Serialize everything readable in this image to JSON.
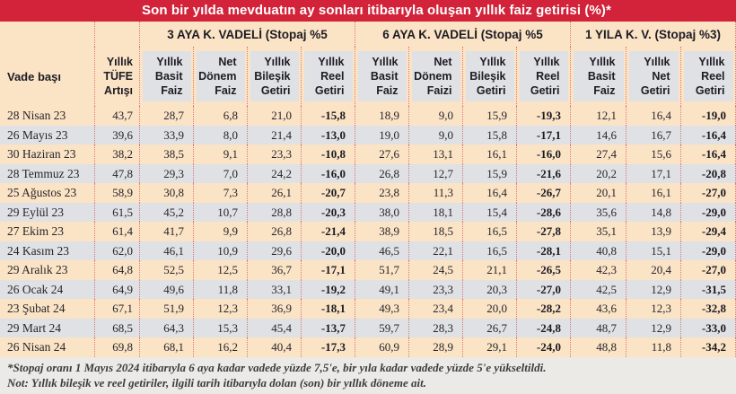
{
  "title": "Son bir yılda mevduatın ay sonları itibarıyla oluşan yıllık faiz getirisi (%)*",
  "colors": {
    "band_red": "#d2233a",
    "peach": "#fbe3c5",
    "gray_row": "#dfe1e4",
    "footer_bg": "#ebeae7",
    "title_text": "#ffffff",
    "header_text": "#1c1c24",
    "body_text": "#26262c"
  },
  "header": {
    "vade_basi": "Vade başı",
    "tufe": "Yıllık\nTÜFE\nArtışı"
  },
  "groups": [
    {
      "label": "3 AYA K. VADELİ (Stopaj %5",
      "cols": [
        "Yıllık\nBasit\nFaiz",
        "Net\nDönem\nFaiz",
        "Yıllık\nBileşik\nGetiri",
        "Yıllık\nReel\nGetiri"
      ]
    },
    {
      "label": "6 AYA K. VADELİ (Stopaj %5",
      "cols": [
        "Yıllık\nBasit\nFaiz",
        "Net\nDönem\nFaizi",
        "Yıllık\nBileşik\nGetiri",
        "Yıllık\nReel\nGetiri"
      ]
    },
    {
      "label": "1 YILA K. V. (Stopaj %3)",
      "cols": [
        "Yıllık\nBasit\nFaiz",
        "Yıllık\nNet\nGetiri",
        "Yıllık\nReel\nGetiri"
      ]
    }
  ],
  "bold_columns": [
    5,
    9,
    12
  ],
  "rows": [
    [
      "28 Nisan 23",
      "43,7",
      "28,7",
      "6,8",
      "21,0",
      "-15,8",
      "18,9",
      "9,0",
      "15,9",
      "-19,3",
      "12,1",
      "16,4",
      "-19,0"
    ],
    [
      "26 Mayıs 23",
      "39,6",
      "33,9",
      "8,0",
      "21,4",
      "-13,0",
      "19,0",
      "9,0",
      "15,8",
      "-17,1",
      "14,6",
      "16,7",
      "-16,4"
    ],
    [
      "30 Haziran 23",
      "38,2",
      "38,5",
      "9,1",
      "23,3",
      "-10,8",
      "27,6",
      "13,1",
      "16,1",
      "-16,0",
      "27,4",
      "15,6",
      "-16,4"
    ],
    [
      "28 Temmuz 23",
      "47,8",
      "29,3",
      "7,0",
      "24,2",
      "-16,0",
      "26,8",
      "12,7",
      "15,9",
      "-21,6",
      "20,2",
      "17,1",
      "-20,8"
    ],
    [
      "25 Ağustos 23",
      "58,9",
      "30,8",
      "7,3",
      "26,1",
      "-20,7",
      "23,8",
      "11,3",
      "16,4",
      "-26,7",
      "20,1",
      "16,1",
      "-27,0"
    ],
    [
      "29 Eylül 23",
      "61,5",
      "45,2",
      "10,7",
      "28,8",
      "-20,3",
      "38,0",
      "18,1",
      "15,4",
      "-28,6",
      "35,6",
      "14,8",
      "-29,0"
    ],
    [
      "27 Ekim 23",
      "61,4",
      "41,7",
      "9,9",
      "26,8",
      "-21,4",
      "38,9",
      "18,5",
      "16,5",
      "-27,8",
      "35,1",
      "13,9",
      "-29,4"
    ],
    [
      "24 Kasım 23",
      "62,0",
      "46,1",
      "10,9",
      "29,6",
      "-20,0",
      "46,5",
      "22,1",
      "16,5",
      "-28,1",
      "40,8",
      "15,1",
      "-29,0"
    ],
    [
      "29 Aralık 23",
      "64,8",
      "52,5",
      "12,5",
      "36,7",
      "-17,1",
      "51,7",
      "24,5",
      "21,1",
      "-26,5",
      "42,3",
      "20,4",
      "-27,0"
    ],
    [
      "26 Ocak 24",
      "64,9",
      "49,6",
      "11,8",
      "33,1",
      "-19,2",
      "49,1",
      "23,3",
      "20,3",
      "-27,0",
      "42,5",
      "12,9",
      "-31,5"
    ],
    [
      "23 Şubat 24",
      "67,1",
      "51,9",
      "12,3",
      "36,9",
      "-18,1",
      "49,3",
      "23,4",
      "20,0",
      "-28,2",
      "43,6",
      "12,3",
      "-32,8"
    ],
    [
      "29 Mart 24",
      "68,5",
      "64,3",
      "15,3",
      "45,4",
      "-13,7",
      "59,7",
      "28,3",
      "26,7",
      "-24,8",
      "48,7",
      "12,9",
      "-33,0"
    ],
    [
      "26 Nisan 24",
      "69,8",
      "68,1",
      "16,2",
      "40,4",
      "-17,3",
      "60,9",
      "28,9",
      "29,1",
      "-24,0",
      "48,8",
      "11,8",
      "-34,2"
    ]
  ],
  "footnotes": [
    "*Stopaj oranı 1 Mayıs 2024 itibarıyla 6 aya kadar vadede yüzde 7,5'e, bir yıla kadar vadede yüzde 5'e yükseltildi.",
    "Not: Yıllık bileşik ve reel getiriler, ilgili tarih itibarıyla dolan (son) bir yıllık döneme ait."
  ]
}
